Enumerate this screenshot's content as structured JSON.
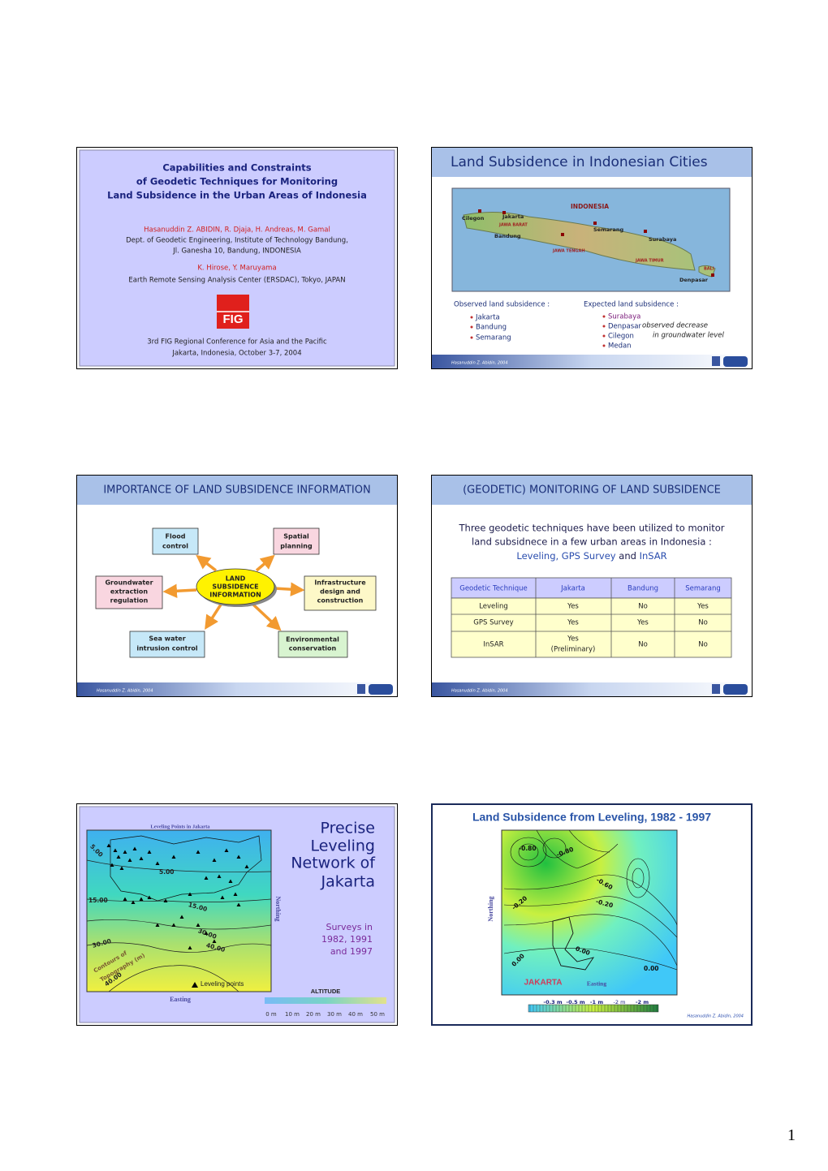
{
  "slides": [
    {
      "title": [
        "Capabilities and Constraints",
        "of Geodetic Techniques for Monitoring",
        "Land Subsidence in the Urban Areas of Indonesia"
      ],
      "authors": "Hasanuddin Z. ABIDIN, R. Djaja, H. Andreas, M. Gamal",
      "affiliation": [
        "Dept. of Geodetic Engineering, Institute of Technology Bandung,",
        "Jl. Ganesha 10, Bandung, INDONESIA"
      ],
      "co_authors": "K. Hirose, Y. Maruyama",
      "co_affiliation": "Earth Remote Sensing Analysis Center (ERSDAC), Tokyo, JAPAN",
      "logo": "FIG",
      "conference": [
        "3rd FIG Regional Conference for Asia and the Pacific",
        "Jakarta, Indonesia, October 3-7, 2004"
      ]
    },
    {
      "title": "Land Subsidence in Indonesian Cities",
      "map_labels": [
        "INDONESIA",
        "Cilegon",
        "Jakarta",
        "JAWA BARAT",
        "Bandung",
        "Semarang",
        "JAWA TENGAH",
        "Surabaya",
        "JAWA TIMUR",
        "BALI",
        "Denpasar"
      ],
      "observed_heading": "Observed land subsidence :",
      "observed": [
        "Jakarta",
        "Bandung",
        "Semarang"
      ],
      "expected_heading": "Expected land subsidence :",
      "expected": [
        "Surabaya",
        "Denpasar",
        "Cilegon",
        "Medan"
      ],
      "note": [
        "observed decrease",
        "in groundwater level"
      ],
      "footer": "Hasanuddin Z. Abidin, 2004"
    },
    {
      "title": "IMPORTANCE OF LAND SUBSIDENCE INFORMATION",
      "center": [
        "LAND",
        "SUBSIDENCE",
        "INFORMATION"
      ],
      "boxes": [
        [
          "Flood",
          "control"
        ],
        [
          "Spatial",
          "planning"
        ],
        [
          "Groundwater",
          "extraction",
          "regulation"
        ],
        [
          "Infrastructure",
          "design and",
          "construction"
        ],
        [
          "Sea water",
          "intrusion control"
        ],
        [
          "Environmental",
          "conservation"
        ]
      ],
      "footer": "Hasanuddin Z. Abidin, 2004"
    },
    {
      "title": "(GEODETIC) MONITORING OF LAND SUBSIDENCE",
      "intro": [
        "Three geodetic techniques have been utilized to monitor",
        "land subsidnece in a few urban areas in Indonesia :"
      ],
      "techniques": [
        "Leveling, GPS Survey",
        "and",
        "InSAR"
      ],
      "table": {
        "header": [
          "Geodetic Technique",
          "Jakarta",
          "Bandung",
          "Semarang"
        ],
        "rows": [
          [
            "Leveling",
            "Yes",
            "No",
            "Yes"
          ],
          [
            "GPS Survey",
            "Yes",
            "Yes",
            "No"
          ],
          [
            "InSAR",
            [
              "Yes",
              "(Preliminary)"
            ],
            "No",
            "No"
          ]
        ]
      },
      "footer": "Hasanuddin Z. Abidin, 2004"
    },
    {
      "title": [
        "Precise",
        "Leveling",
        "Network of",
        "Jakarta"
      ],
      "map_title": "Leveling Points in Jakarta",
      "contour_labels": [
        "5.00",
        "5.00",
        "15.00",
        "15.00",
        "30.00",
        "30.00",
        "40.00",
        "40.00"
      ],
      "contours_label": [
        "Contours of",
        "Topography (m)"
      ],
      "legend": "Leveling points",
      "northing": "Northing",
      "easting": "Easting",
      "surveys": [
        "Surveys in",
        "1982, 1991",
        "and 1997"
      ],
      "altitude": "ALTITUDE",
      "scale": [
        "0 m",
        "10 m",
        "20 m",
        "30 m",
        "40 m",
        "50 m"
      ]
    },
    {
      "title": "Land Subsidence from Leveling, 1982 - 1997",
      "contour_labels": [
        "-0.80",
        "-0.80",
        "-0.60",
        "-0.20",
        "-0.20",
        "0.00",
        "0.00",
        "0.00"
      ],
      "northing": "Northing",
      "city": "JAKARTA",
      "easting": "Easting",
      "scale": [
        "-0.3 m",
        "-0.5 m",
        "-1 m",
        "-2 m",
        "-2 m"
      ],
      "footer": "Hasanuddin Z. Abidin, 2004"
    }
  ],
  "page_number": "1"
}
